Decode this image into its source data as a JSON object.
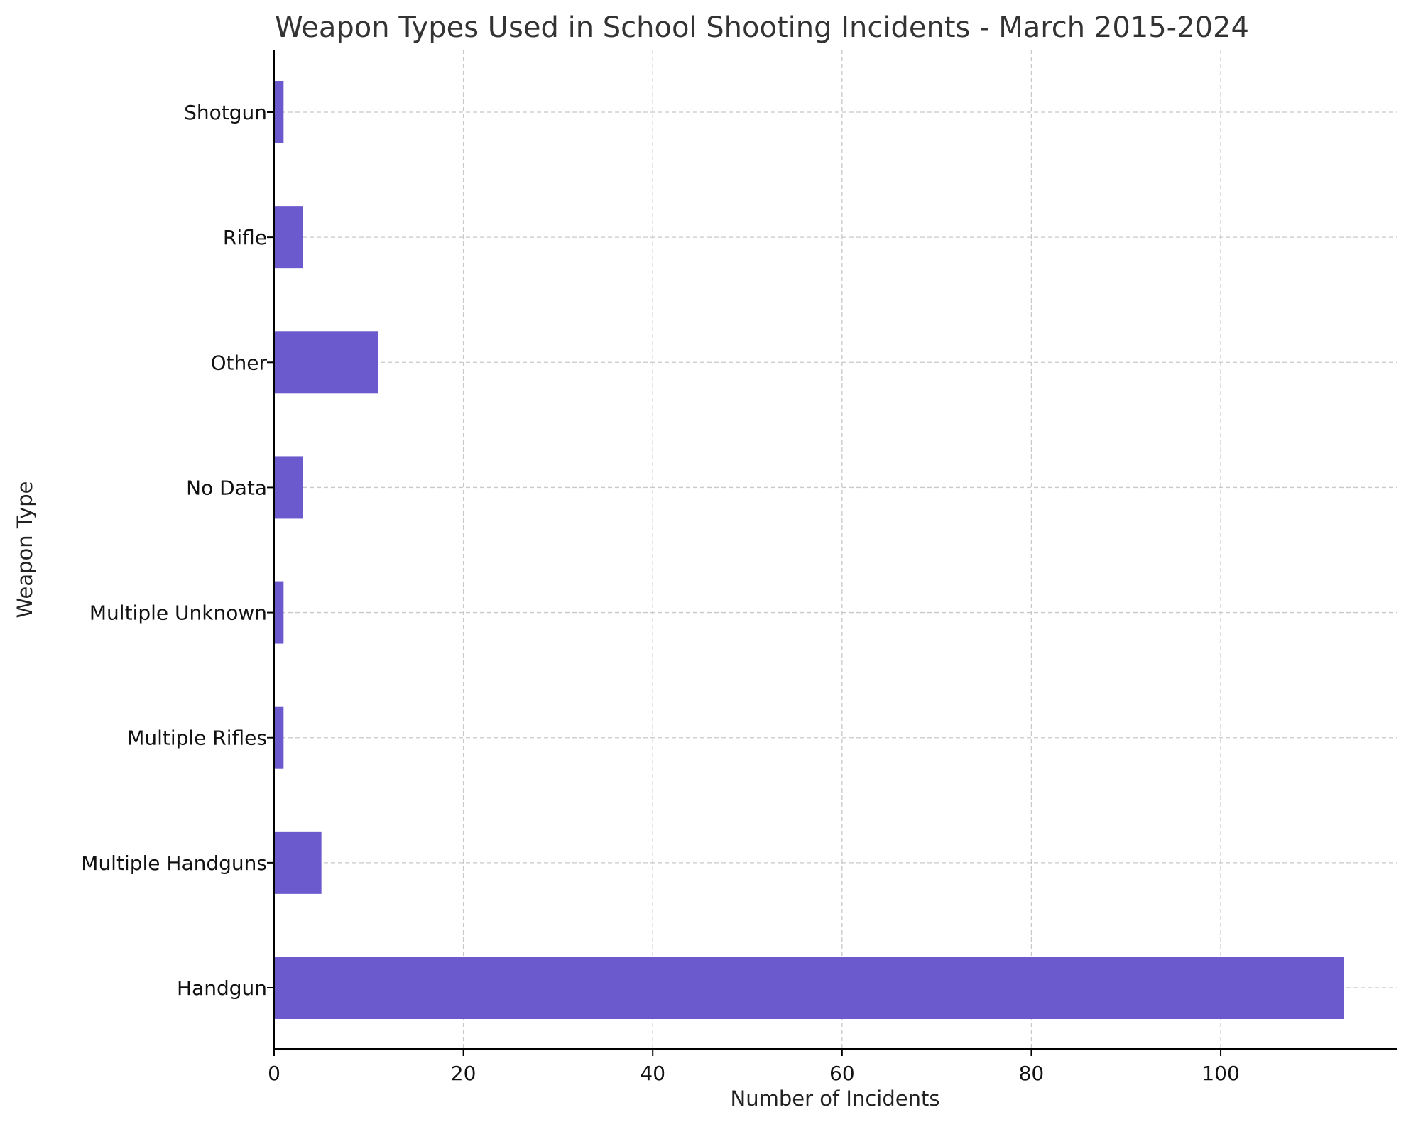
{
  "chart_data": {
    "type": "bar",
    "orientation": "horizontal",
    "title": "Weapon Types Used in School Shooting Incidents - March 2015-2024",
    "xlabel": "Number of Incidents",
    "ylabel": "Weapon Type",
    "categories": [
      "Handgun",
      "Multiple Handguns",
      "Multiple Rifles",
      "Multiple Unknown",
      "No Data",
      "Other",
      "Rifle",
      "Shotgun"
    ],
    "values": [
      113,
      5,
      1,
      1,
      3,
      11,
      3,
      1
    ],
    "xlim": [
      0,
      118.6
    ],
    "xticks": [
      0,
      20,
      40,
      60,
      80,
      100
    ],
    "grid": true,
    "bar_color": "#6a5acd"
  }
}
